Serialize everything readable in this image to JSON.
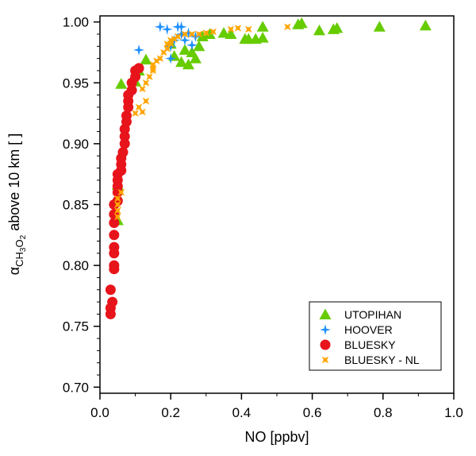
{
  "chart_data": {
    "type": "scatter",
    "title": "",
    "xlabel": "NO [ppbv]",
    "ylabel": {
      "prefix": "α",
      "sub1": "CH",
      "sub2": "3",
      "sub3": "O",
      "sub4": "2",
      "rest": " above 10 km [ ]"
    },
    "xlim": [
      0.0,
      1.0
    ],
    "ylim": [
      0.695,
      1.005
    ],
    "xticks": [
      "0.0",
      "0.2",
      "0.4",
      "0.6",
      "0.8",
      "1.0"
    ],
    "yticks": [
      "0.70",
      "0.75",
      "0.80",
      "0.85",
      "0.90",
      "0.95",
      "1.00"
    ],
    "grid": false,
    "legend_position": "bottom-right",
    "series": [
      {
        "name": "UTOPIHAN",
        "marker": "triangle",
        "color": "#66cc00",
        "points": [
          [
            0.05,
            0.837
          ],
          [
            0.05,
            0.866
          ],
          [
            0.06,
            0.949
          ],
          [
            0.1,
            0.951
          ],
          [
            0.11,
            0.96
          ],
          [
            0.13,
            0.969
          ],
          [
            0.2,
            0.982
          ],
          [
            0.21,
            0.972
          ],
          [
            0.23,
            0.967
          ],
          [
            0.25,
            0.965
          ],
          [
            0.24,
            0.977
          ],
          [
            0.26,
            0.975
          ],
          [
            0.27,
            0.97
          ],
          [
            0.28,
            0.98
          ],
          [
            0.29,
            0.988
          ],
          [
            0.31,
            0.99
          ],
          [
            0.35,
            0.991
          ],
          [
            0.37,
            0.99
          ],
          [
            0.41,
            0.986
          ],
          [
            0.42,
            0.986
          ],
          [
            0.44,
            0.986
          ],
          [
            0.46,
            0.987
          ],
          [
            0.46,
            0.996
          ],
          [
            0.56,
            0.998
          ],
          [
            0.57,
            0.999
          ],
          [
            0.62,
            0.993
          ],
          [
            0.66,
            0.994
          ],
          [
            0.67,
            0.995
          ],
          [
            0.79,
            0.996
          ],
          [
            0.92,
            0.997
          ]
        ]
      },
      {
        "name": "HOOVER",
        "marker": "star",
        "color": "#1e90ff",
        "points": [
          [
            0.11,
            0.977
          ],
          [
            0.17,
            0.996
          ],
          [
            0.19,
            0.994
          ],
          [
            0.2,
            0.98
          ],
          [
            0.2,
            0.97
          ],
          [
            0.21,
            0.985
          ],
          [
            0.22,
            0.996
          ],
          [
            0.23,
            0.996
          ],
          [
            0.23,
            0.99
          ],
          [
            0.24,
            0.985
          ],
          [
            0.25,
            0.991
          ],
          [
            0.26,
            0.981
          ],
          [
            0.27,
            0.988
          ]
        ]
      },
      {
        "name": "BLUESKY",
        "marker": "circle",
        "color": "#e8141b",
        "points": [
          [
            0.03,
            0.76
          ],
          [
            0.03,
            0.765
          ],
          [
            0.035,
            0.77
          ],
          [
            0.03,
            0.78
          ],
          [
            0.04,
            0.797
          ],
          [
            0.04,
            0.8
          ],
          [
            0.04,
            0.81
          ],
          [
            0.04,
            0.815
          ],
          [
            0.04,
            0.825
          ],
          [
            0.04,
            0.835
          ],
          [
            0.04,
            0.842
          ],
          [
            0.04,
            0.85
          ],
          [
            0.05,
            0.853
          ],
          [
            0.05,
            0.86
          ],
          [
            0.05,
            0.865
          ],
          [
            0.05,
            0.87
          ],
          [
            0.05,
            0.875
          ],
          [
            0.06,
            0.878
          ],
          [
            0.06,
            0.883
          ],
          [
            0.06,
            0.888
          ],
          [
            0.065,
            0.893
          ],
          [
            0.07,
            0.9
          ],
          [
            0.07,
            0.906
          ],
          [
            0.07,
            0.912
          ],
          [
            0.075,
            0.918
          ],
          [
            0.075,
            0.923
          ],
          [
            0.08,
            0.93
          ],
          [
            0.08,
            0.935
          ],
          [
            0.08,
            0.94
          ],
          [
            0.09,
            0.944
          ],
          [
            0.09,
            0.95
          ],
          [
            0.1,
            0.955
          ],
          [
            0.1,
            0.96
          ],
          [
            0.11,
            0.962
          ]
        ]
      },
      {
        "name": "BLUESKY - NL",
        "marker": "x-cross",
        "color": "#ffa500",
        "points": [
          [
            0.05,
            0.84
          ],
          [
            0.05,
            0.845
          ],
          [
            0.05,
            0.85
          ],
          [
            0.05,
            0.855
          ],
          [
            0.06,
            0.86
          ],
          [
            0.1,
            0.925
          ],
          [
            0.11,
            0.93
          ],
          [
            0.12,
            0.926
          ],
          [
            0.13,
            0.935
          ],
          [
            0.12,
            0.945
          ],
          [
            0.13,
            0.95
          ],
          [
            0.14,
            0.955
          ],
          [
            0.15,
            0.96
          ],
          [
            0.15,
            0.965
          ],
          [
            0.16,
            0.968
          ],
          [
            0.17,
            0.97
          ],
          [
            0.18,
            0.975
          ],
          [
            0.19,
            0.978
          ],
          [
            0.19,
            0.982
          ],
          [
            0.2,
            0.985
          ],
          [
            0.21,
            0.986
          ],
          [
            0.22,
            0.988
          ],
          [
            0.24,
            0.99
          ],
          [
            0.26,
            0.99
          ],
          [
            0.28,
            0.99
          ],
          [
            0.3,
            0.991
          ],
          [
            0.32,
            0.992
          ],
          [
            0.37,
            0.994
          ],
          [
            0.39,
            0.995
          ],
          [
            0.42,
            0.994
          ],
          [
            0.53,
            0.996
          ],
          [
            0.15,
            0.962
          ],
          [
            0.2,
            0.982
          ]
        ]
      }
    ]
  }
}
